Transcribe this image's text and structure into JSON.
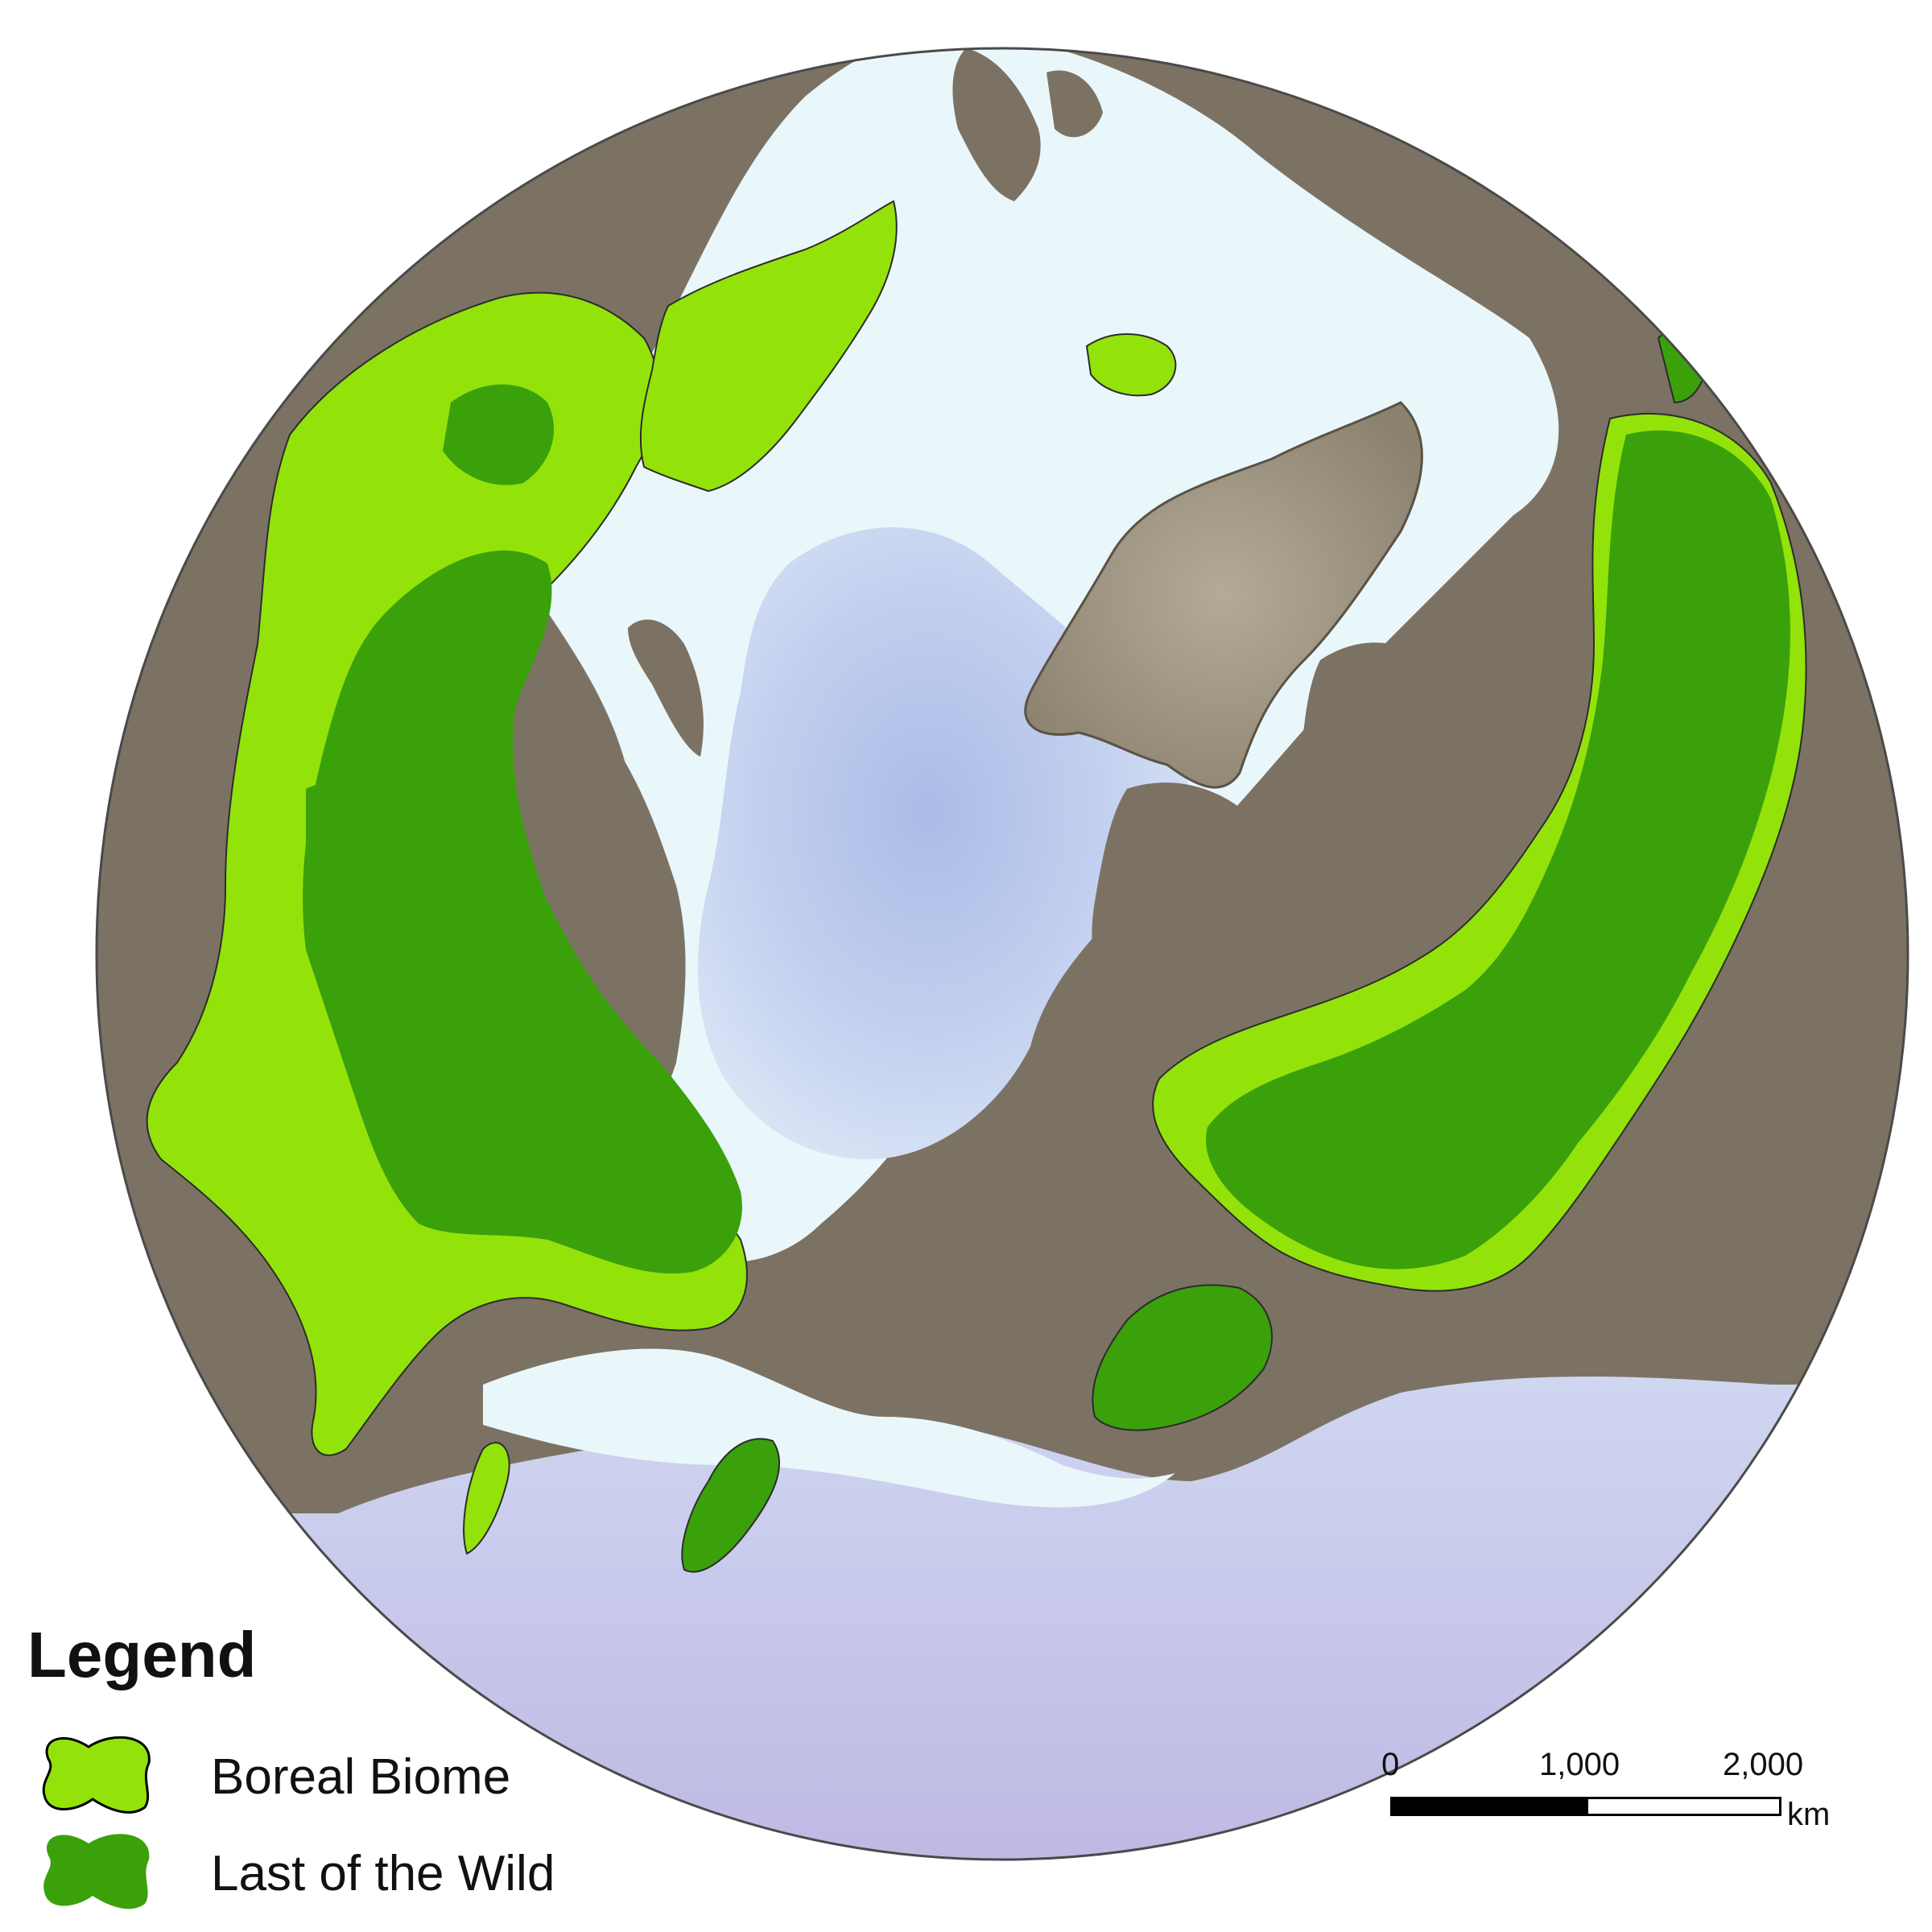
{
  "legend": {
    "title": "Legend",
    "items": [
      {
        "label": "Boreal Biome",
        "color": "#93e30a"
      },
      {
        "label": "Last of the Wild",
        "color": "#3aa10b"
      }
    ]
  },
  "scale_bar": {
    "ticks": [
      "0",
      "1,000",
      "2,000"
    ],
    "unit": "km"
  },
  "colors": {
    "land": "#7c7264",
    "ice_cap": "#a49a88",
    "shelf_ocean": "#e9f7fb",
    "deep_ocean": "#b8c6ea",
    "pacific_ocean": "#c4c0e6",
    "boreal": "#93e30a",
    "wild": "#3aa10b",
    "outline": "#3a3a3a"
  }
}
